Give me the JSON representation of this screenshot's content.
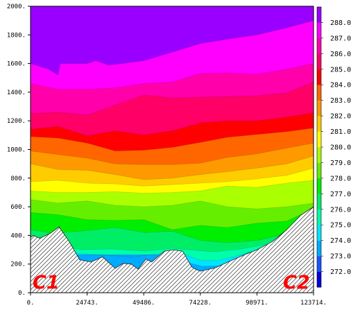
{
  "chart_data": {
    "type": "contour",
    "x_ticks": [
      "0.",
      "24743.",
      "49486.",
      "74228.",
      "98971.",
      "123714."
    ],
    "y_ticks": [
      "0.",
      "200.",
      "400.",
      "600.",
      "800.",
      "1000.",
      "1200.",
      "1400.",
      "1600.",
      "1800.",
      "2000."
    ],
    "xlim": [
      0,
      123714
    ],
    "ylim": [
      0,
      2000
    ],
    "colorbar": {
      "labels": [
        "272.0",
        "273.0",
        "274.0",
        "275.0",
        "276.0",
        "277.0",
        "278.0",
        "279.0",
        "280.0",
        "281.0",
        "282.0",
        "283.0",
        "284.0",
        "285.0",
        "286.0",
        "287.0",
        "288.0"
      ],
      "colors": [
        "#0000dd",
        "#1a55ff",
        "#00aaff",
        "#00e5ff",
        "#00ffaa",
        "#00ee66",
        "#00ee00",
        "#66ee00",
        "#aaff00",
        "#ffff00",
        "#ffcc00",
        "#ff9900",
        "#ff6600",
        "#ff0000",
        "#ff0066",
        "#ff00aa",
        "#ff00ff",
        "#9900ff"
      ]
    },
    "end_labels": [
      "C1",
      "C2"
    ],
    "terrain": {
      "x": [
        0,
        1200,
        4000,
        8700,
        12500,
        17000,
        21500,
        26500,
        31500,
        37000,
        40500,
        44000,
        47000,
        50500,
        53000,
        58500,
        62500,
        66500,
        70500,
        72000,
        74228,
        81000,
        87000,
        93500,
        98971,
        106000,
        112000,
        118000,
        123714
      ],
      "y": [
        385,
        400,
        380,
        415,
        460,
        355,
        230,
        215,
        250,
        170,
        205,
        200,
        165,
        235,
        215,
        290,
        300,
        290,
        180,
        165,
        150,
        175,
        220,
        265,
        300,
        360,
        440,
        540,
        600
      ]
    },
    "isotherms": [
      {
        "level": 274.0,
        "x": [
          64000,
          70000,
          75000,
          82000,
          90000,
          95000
        ],
        "y": [
          265,
          205,
          185,
          188,
          230,
          280
        ]
      },
      {
        "level": 275.0,
        "x": [
          20000,
          30000,
          45000,
          60000,
          68000,
          74228,
          82000,
          92000,
          98971,
          106000
        ],
        "y": [
          275,
          265,
          250,
          280,
          265,
          225,
          225,
          265,
          300,
          360
        ]
      },
      {
        "level": 276.0,
        "x": [
          14000,
          22000,
          35000,
          50000,
          62000,
          70000,
          80000,
          92000,
          102000,
          110000
        ],
        "y": [
          330,
          300,
          305,
          290,
          310,
          300,
          285,
          305,
          335,
          400
        ]
      },
      {
        "level": 277.0,
        "x": [
          0,
          10000,
          22000,
          37000,
          50000,
          62000,
          74228,
          86000,
          98971,
          110000,
          118000
        ],
        "y": [
          440,
          415,
          430,
          455,
          420,
          430,
          365,
          350,
          365,
          405,
          520
        ]
      },
      {
        "level": 278.0,
        "x": [
          0,
          12000,
          24743,
          37000,
          49486,
          62000,
          74228,
          86000,
          98971,
          112000,
          120000
        ],
        "y": [
          560,
          545,
          510,
          505,
          510,
          440,
          470,
          455,
          485,
          500,
          560
        ]
      },
      {
        "level": 279.0,
        "x": [
          0,
          12000,
          24743,
          37000,
          49486,
          62000,
          74228,
          86000,
          98971,
          112000,
          123714
        ],
        "y": [
          650,
          625,
          640,
          610,
          600,
          610,
          640,
          600,
          585,
          600,
          625
        ]
      },
      {
        "level": 280.0,
        "x": [
          0,
          12000,
          24743,
          37000,
          49486,
          62000,
          74228,
          86000,
          98971,
          112000,
          123714
        ],
        "y": [
          710,
          700,
          700,
          705,
          695,
          700,
          710,
          745,
          735,
          765,
          785
        ]
      },
      {
        "level": 281.0,
        "x": [
          0,
          12000,
          24743,
          37000,
          49486,
          62000,
          74228,
          86000,
          98971,
          112000,
          123714
        ],
        "y": [
          775,
          785,
          765,
          760,
          745,
          755,
          765,
          775,
          795,
          820,
          870
        ]
      },
      {
        "level": 282.0,
        "x": [
          0,
          12000,
          24743,
          37000,
          49486,
          62000,
          74228,
          86000,
          98971,
          112000,
          123714
        ],
        "y": [
          900,
          860,
          855,
          825,
          790,
          800,
          825,
          845,
          870,
          900,
          955
        ]
      },
      {
        "level": 283.0,
        "x": [
          0,
          12000,
          24743,
          37000,
          49486,
          62000,
          74228,
          86000,
          98971,
          112000,
          123714
        ],
        "y": [
          990,
          965,
          940,
          900,
          895,
          895,
          905,
          945,
          970,
          1010,
          1045
        ]
      },
      {
        "level": 284.0,
        "x": [
          0,
          12000,
          24743,
          37000,
          49486,
          62000,
          74228,
          86000,
          98971,
          112000,
          123714
        ],
        "y": [
          1090,
          1080,
          1045,
          990,
          995,
          1015,
          1050,
          1085,
          1105,
          1125,
          1150
        ]
      },
      {
        "level": 285.0,
        "x": [
          0,
          12000,
          24743,
          37000,
          49486,
          62000,
          74228,
          86000,
          98971,
          112000,
          123714
        ],
        "y": [
          1140,
          1160,
          1095,
          1130,
          1100,
          1130,
          1185,
          1200,
          1200,
          1225,
          1255
        ]
      },
      {
        "level": 286.0,
        "x": [
          0,
          12000,
          24743,
          37000,
          49486,
          62000,
          74228,
          86000,
          98971,
          112000,
          123714
        ],
        "y": [
          1250,
          1260,
          1240,
          1310,
          1380,
          1360,
          1365,
          1370,
          1375,
          1395,
          1470
        ]
      },
      {
        "level": 287.0,
        "x": [
          0,
          12000,
          24743,
          37000,
          49486,
          62000,
          74228,
          86000,
          98971,
          112000,
          123714
        ],
        "y": [
          1460,
          1420,
          1420,
          1430,
          1460,
          1470,
          1530,
          1535,
          1525,
          1560,
          1600
        ]
      },
      {
        "level": 288.0,
        "x": [
          0,
          8000,
          12000,
          13000,
          24743,
          28500,
          34000,
          37500,
          49486,
          62000,
          74228,
          86000,
          98971,
          112000,
          123714
        ],
        "y": [
          1600,
          1560,
          1520,
          1600,
          1600,
          1620,
          1590,
          1595,
          1620,
          1680,
          1740,
          1770,
          1800,
          1850,
          1900
        ]
      }
    ]
  }
}
